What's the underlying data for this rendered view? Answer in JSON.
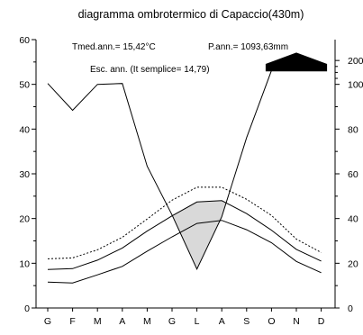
{
  "chart_data": {
    "type": "line",
    "title": "diagramma ombrotermico di Capaccio(430m)",
    "annotations": {
      "tmed": "Tmed.ann.= 15,42°C",
      "pann": "P.ann.= 1093,63mm",
      "esc": "Esc. ann. (It semplice= 14,79)"
    },
    "categories": [
      "G",
      "F",
      "M",
      "A",
      "M",
      "G",
      "L",
      "A",
      "S",
      "O",
      "N",
      "D"
    ],
    "left_axis": {
      "ylim": [
        0,
        60
      ],
      "ticks": [
        "0",
        "10",
        "20",
        "30",
        "40",
        "50",
        "60"
      ]
    },
    "right_axis": {
      "ticks": [
        "0",
        "20",
        "40",
        "60",
        "80",
        "100",
        "200"
      ],
      "scale": "0–100 mm linear (2× temperature), compressed above 100 mm"
    },
    "series": [
      {
        "values": [
          50.2,
          44.2,
          50.0,
          50.2,
          31.7,
          20.8,
          8.7,
          20.4,
          38.1,
          53.1,
          55.3,
          53.1
        ]
      },
      {
        "values": [
          8.6,
          8.8,
          10.7,
          13.4,
          17.2,
          20.6,
          23.7,
          24.0,
          21.1,
          17.4,
          13.1,
          10.5
        ]
      },
      {
        "values": [
          11.0,
          11.2,
          13.0,
          15.8,
          19.9,
          24.1,
          27.0,
          27.0,
          24.3,
          20.7,
          15.4,
          12.4
        ],
        "style": "dashed"
      },
      {
        "values": [
          5.8,
          5.6,
          7.4,
          9.3,
          12.7,
          15.9,
          18.9,
          19.6,
          17.5,
          14.6,
          10.4,
          7.9
        ]
      }
    ],
    "fill_colors": {
      "arid": "#d9d9d9",
      "superhumid": "#000000"
    }
  }
}
